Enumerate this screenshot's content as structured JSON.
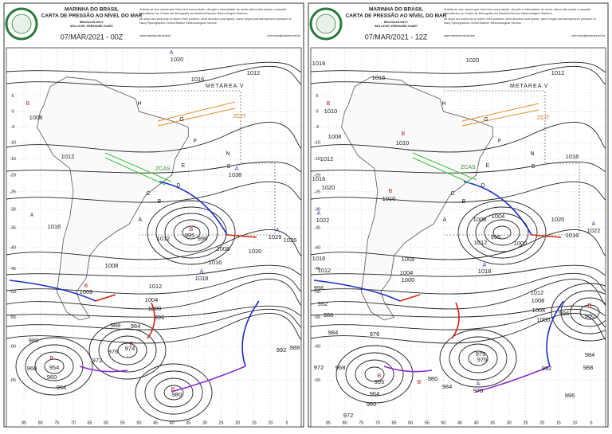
{
  "panels": [
    {
      "header": {
        "org": "MARINHA DO BRASIL",
        "title": "CARTA DE PRESSÃO AO NÍVEL DO MAR",
        "org_en": "BRAZILIAN NAVY",
        "title_en": "SEA LEVEL PRESSURE CHART",
        "date": "07/MAR/2021 - 00Z",
        "note_pt": "Solicita-se aos navios que informem sua posição, direção e intensidade do vento, altura das ondas e pressão atmosférica ao Centro de Hidrografia da Marinha/Serviço Meteorológico Marinho.",
        "note_en": "All ships are welcome to inform their position, wind direction and speed, wave height and atmospheric pressure to Navy Hydrographic Center/Marine Meteorological Service.",
        "website": "www.marinha.mil.br/chm",
        "email": "chm.smm@marinha.mil.br"
      },
      "map": {
        "region": "METAREA V",
        "zones": [
          "ZCIT",
          "ZCAS"
        ],
        "area_letters": [
          "H",
          "G",
          "F",
          "E",
          "D",
          "C",
          "B",
          "A",
          "N",
          "S"
        ],
        "centers": [
          "A",
          "B",
          "A",
          "A",
          "A",
          "B",
          "B",
          "B",
          "B",
          "A",
          "B"
        ],
        "isobars": [
          "1020",
          "1016",
          "1012",
          "1008",
          "1012",
          "1016",
          "1038",
          "1012",
          "1008",
          "1016",
          "1020",
          "1029",
          "1026",
          "1008",
          "1012",
          "1018",
          "1004",
          "1000",
          "996",
          "988",
          "984",
          "980",
          "976",
          "972",
          "992",
          "988",
          "968",
          "964",
          "960",
          "980",
          "954",
          "974",
          "1009",
          "995",
          "996"
        ]
      }
    },
    {
      "header": {
        "org": "MARINHA DO BRASIL",
        "title": "CARTA DE PRESSÃO AO NÍVEL DO MAR",
        "org_en": "BRAZILIAN NAVY",
        "title_en": "SEA LEVEL PRESSURE CHART",
        "date": "07/MAR/2021 - 12Z",
        "note_pt": "Solicita-se aos navios que informem sua posição, direção e intensidade do vento, altura das ondas e pressão atmosférica ao Centro de Hidrografia da Marinha/Serviço Meteorológico Marinho.",
        "note_en": "All ships are welcome to inform their position, wind direction and speed, wave height and atmospheric pressure to Navy Hydrographic Center/Marine Meteorological Service.",
        "website": "www.marinha.mil.br/chm",
        "email": "chm.smm@marinha.mil.br"
      },
      "map": {
        "region": "METAREA V",
        "zones": [
          "ZCIT",
          "ZCAS"
        ],
        "area_letters": [
          "H",
          "G",
          "F",
          "E",
          "D",
          "C",
          "B",
          "A",
          "N",
          "S"
        ],
        "centers": [
          "B",
          "B",
          "B",
          "A",
          "A",
          "A",
          "B",
          "B",
          "B",
          "A"
        ],
        "isobars": [
          "1016",
          "1020",
          "1016",
          "1012",
          "1010",
          "1008",
          "1010",
          "1012",
          "1016",
          "1020",
          "1010",
          "1022",
          "1016",
          "1004",
          "1008",
          "1012",
          "1000",
          "996",
          "1020",
          "1016",
          "1022",
          "1012",
          "1016",
          "1008",
          "1004",
          "1000",
          "1018",
          "1012",
          "1008",
          "1004",
          "1000",
          "996",
          "990",
          "996",
          "992",
          "988",
          "984",
          "976",
          "972",
          "968",
          "964",
          "960",
          "972",
          "980",
          "984",
          "976",
          "992",
          "996",
          "984",
          "988",
          "995",
          "975",
          "978"
        ]
      }
    }
  ],
  "latitudes": [
    5,
    0,
    -5,
    -10,
    -15,
    -20,
    -25,
    -30,
    -35,
    -40,
    -45,
    -50,
    -55,
    -60,
    -65
  ],
  "longitudes": [
    85,
    80,
    75,
    70,
    65,
    60,
    55,
    50,
    45,
    40,
    35,
    30,
    25,
    20,
    15,
    10,
    5
  ]
}
